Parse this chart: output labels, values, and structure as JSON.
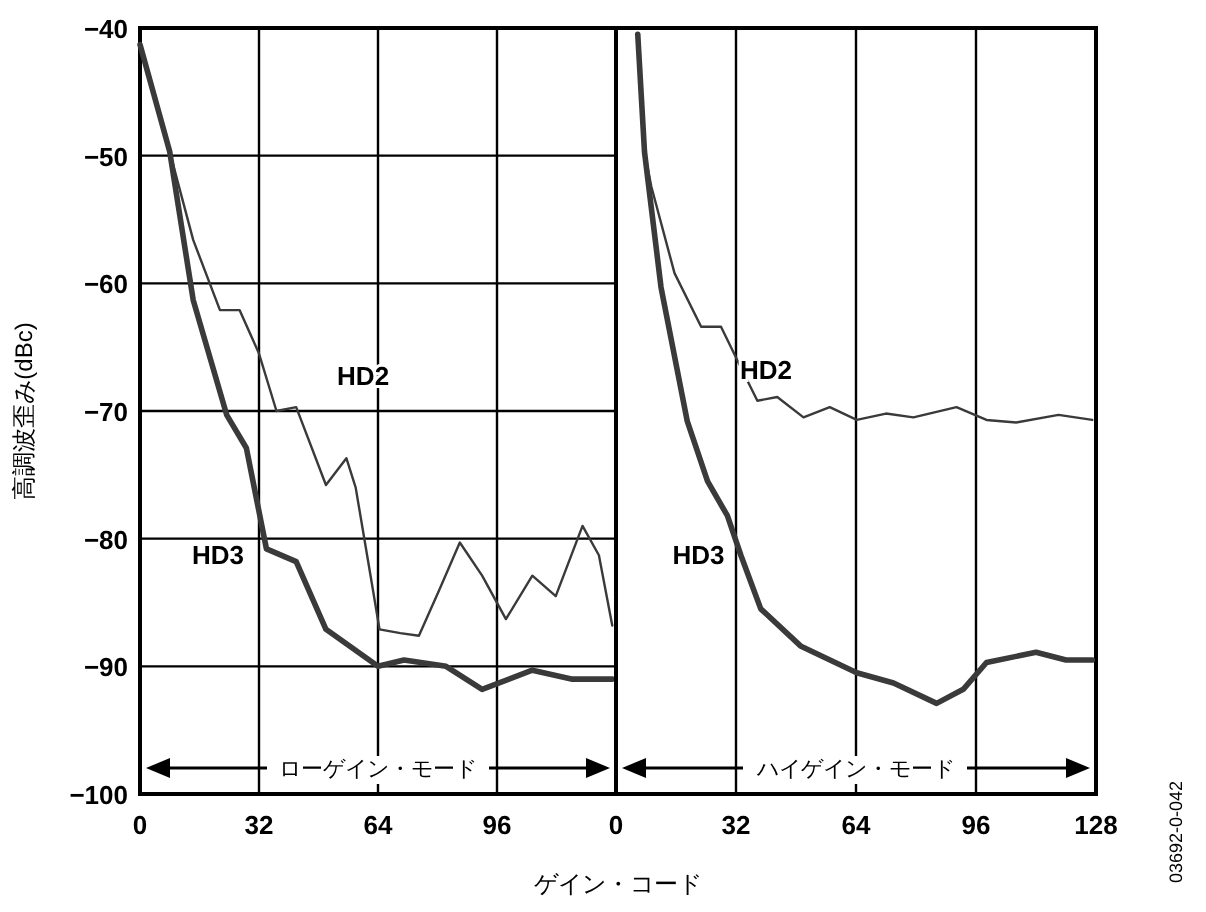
{
  "chart_data": [
    {
      "type": "line",
      "xlabel": "ゲイン・コード",
      "ylabel": "高調波歪み(dBc)",
      "xlim": [
        0,
        128
      ],
      "ylim": [
        -100,
        -40
      ],
      "xticks": [
        0,
        32,
        64,
        96,
        {
          "value": 128,
          "label": null
        }
      ],
      "yticks": [
        {
          "value": -100,
          "label": "−100"
        },
        {
          "value": -90,
          "label": "−90"
        },
        {
          "value": -80,
          "label": "−80"
        },
        {
          "value": -70,
          "label": "−70"
        },
        {
          "value": -60,
          "label": "−60"
        },
        {
          "value": -50,
          "label": "−50"
        },
        {
          "value": -40,
          "label": "−40"
        }
      ],
      "grid": true,
      "series": [
        {
          "name": "HD2",
          "color": "#3a3a3a",
          "x": [
            0,
            8,
            14.3,
            21.5,
            26.8,
            32,
            36.7,
            42,
            50,
            55.5,
            58,
            62,
            64.4,
            70,
            75,
            80.5,
            86,
            92,
            98.4,
            105.5,
            111.8,
            119,
            123.4,
            127
          ],
          "values": [
            -41.3,
            -49.7,
            -56.6,
            -62.1,
            -62.1,
            -65.5,
            -70,
            -69.7,
            -75.8,
            -73.7,
            -76,
            -82.9,
            -87.1,
            -87.4,
            -87.6,
            -84,
            -80.3,
            -82.9,
            -86.3,
            -82.9,
            -84.5,
            -79,
            -81.3,
            -86.8
          ]
        },
        {
          "name": "HD3",
          "color": "#3a3a3a",
          "x": [
            0,
            8,
            14.3,
            23.3,
            28.6,
            34,
            42,
            50,
            64,
            71,
            82.3,
            92,
            105.5,
            116,
            127
          ],
          "values": [
            -41.3,
            -49.7,
            -61.3,
            -70.3,
            -72.9,
            -80.8,
            -81.8,
            -87.1,
            -90,
            -89.5,
            -90,
            -91.8,
            -90.3,
            -91,
            -91
          ]
        }
      ],
      "annotations": [
        "ローゲイン・モード"
      ]
    },
    {
      "type": "line",
      "xlim": [
        0,
        128
      ],
      "ylim": [
        -100,
        -40
      ],
      "xticks": [
        0,
        32,
        64,
        96,
        128
      ],
      "tick_labels": "x",
      "grid": true,
      "series": [
        {
          "name": "HD2",
          "color": "#3a3a3a",
          "x": [
            5.8,
            7.6,
            9.4,
            15.6,
            22.7,
            28,
            33.3,
            37.7,
            43,
            50,
            57,
            64.2,
            72,
            79.3,
            90.8,
            98.8,
            106.7,
            118,
            127
          ],
          "values": [
            -40.5,
            -49.7,
            -52.4,
            -59.2,
            -63.4,
            -63.4,
            -66.6,
            -69.2,
            -68.9,
            -70.5,
            -69.7,
            -70.7,
            -70.2,
            -70.5,
            -69.7,
            -70.7,
            -70.9,
            -70.3,
            -70.7
          ]
        },
        {
          "name": "HD3",
          "color": "#3a3a3a",
          "x": [
            5.8,
            7.6,
            12,
            19,
            24.4,
            29.7,
            33.3,
            38.6,
            49.2,
            64.2,
            74,
            85.5,
            92.6,
            98.8,
            112,
            120,
            127
          ],
          "values": [
            -40.5,
            -49.7,
            -60.3,
            -70.8,
            -75.5,
            -78.2,
            -81.3,
            -85.5,
            -88.4,
            -90.5,
            -91.3,
            -92.9,
            -91.8,
            -89.7,
            -88.9,
            -89.5,
            -89.5
          ]
        }
      ],
      "annotations": [
        "ハイゲイン・モード",
        "03692-0-042"
      ]
    }
  ]
}
